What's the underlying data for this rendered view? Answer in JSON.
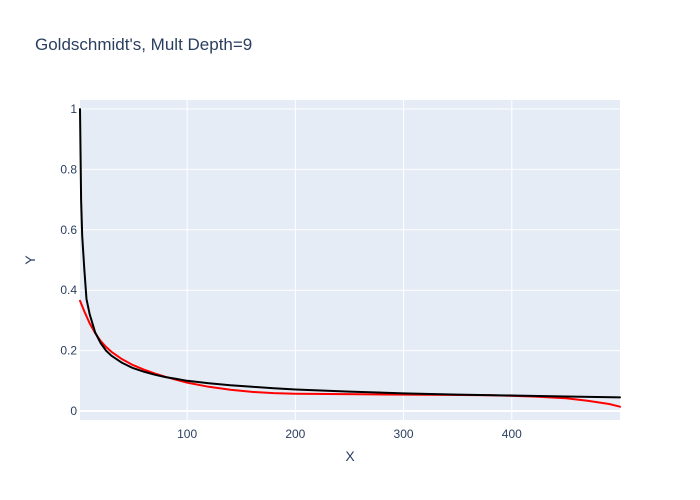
{
  "chart_data": {
    "type": "line",
    "title": "Goldschmidt's, Mult Depth=9",
    "xlabel": "X",
    "ylabel": "Y",
    "xlim": [
      1,
      500
    ],
    "ylim": [
      -0.03,
      1.03
    ],
    "x_ticks": [
      100,
      200,
      300,
      400
    ],
    "y_ticks": [
      0,
      0.2,
      0.4,
      0.6,
      0.8,
      1
    ],
    "y_tick_labels": [
      "0",
      "0.2",
      "0.4",
      "0.6",
      "0.8",
      "1"
    ],
    "x_tick_labels": [
      "100",
      "200",
      "300",
      "400"
    ],
    "grid": true,
    "background": "#e5ecf6",
    "series": [
      {
        "color": "#ff0000",
        "x": [
          1,
          5,
          10,
          15,
          20,
          25,
          30,
          40,
          50,
          60,
          70,
          80,
          90,
          100,
          120,
          140,
          160,
          180,
          200,
          230,
          260,
          300,
          340,
          380,
          420,
          450,
          470,
          490,
          500
        ],
        "y": [
          0.365,
          0.33,
          0.29,
          0.258,
          0.232,
          0.212,
          0.196,
          0.171,
          0.152,
          0.137,
          0.124,
          0.113,
          0.103,
          0.094,
          0.08,
          0.07,
          0.063,
          0.059,
          0.057,
          0.056,
          0.055,
          0.054,
          0.053,
          0.052,
          0.048,
          0.042,
          0.034,
          0.023,
          0.014
        ]
      },
      {
        "color": "#000000",
        "x": [
          1,
          2,
          3,
          5,
          7,
          10,
          15,
          20,
          25,
          30,
          40,
          50,
          60,
          70,
          80,
          90,
          100,
          120,
          140,
          160,
          180,
          200,
          250,
          300,
          350,
          400,
          450,
          500
        ],
        "y": [
          1.0,
          0.7,
          0.58,
          0.47,
          0.37,
          0.32,
          0.26,
          0.225,
          0.2,
          0.183,
          0.159,
          0.142,
          0.13,
          0.12,
          0.112,
          0.106,
          0.1,
          0.092,
          0.085,
          0.08,
          0.075,
          0.071,
          0.064,
          0.058,
          0.054,
          0.051,
          0.048,
          0.045
        ]
      }
    ]
  }
}
